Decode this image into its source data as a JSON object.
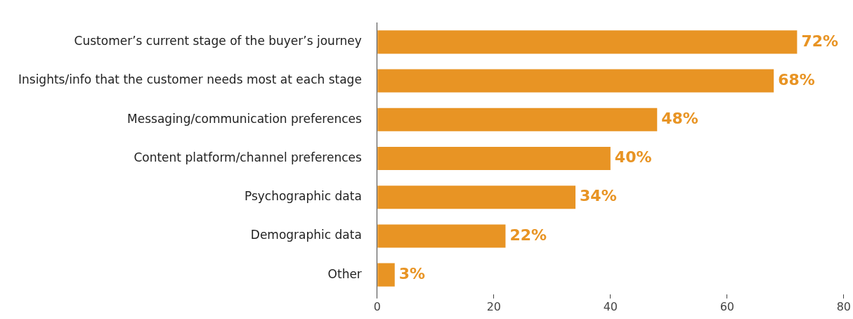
{
  "chart_data": {
    "type": "bar",
    "orientation": "horizontal",
    "categories": [
      "Customer’s current stage of the buyer’s journey",
      "Insights/info that the customer needs most at each stage",
      "Messaging/communication preferences",
      "Content platform/channel preferences",
      "Psychographic data",
      "Demographic data",
      "Other"
    ],
    "values": [
      72,
      68,
      48,
      40,
      34,
      22,
      3
    ],
    "value_labels": [
      "72%",
      "68%",
      "48%",
      "40%",
      "34%",
      "22%",
      "3%"
    ],
    "color": "#e89424",
    "xlim": [
      0,
      80
    ],
    "xticks": [
      0,
      20,
      40,
      60,
      80
    ],
    "grid": false,
    "legend": false
  }
}
